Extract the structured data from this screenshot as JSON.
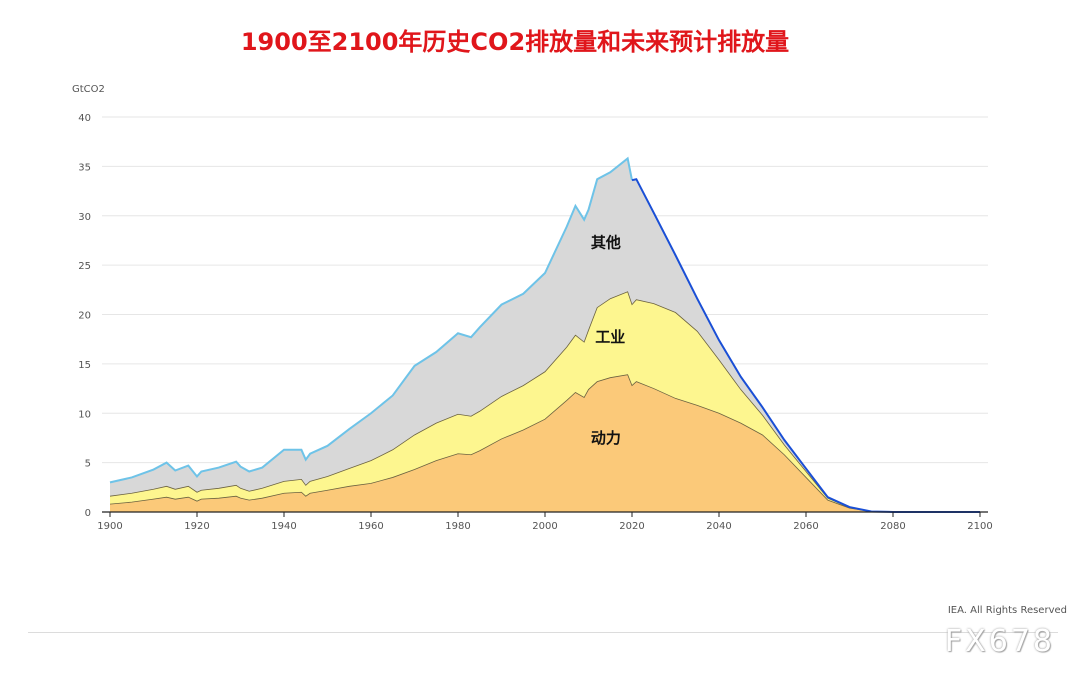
{
  "header": {
    "title": "1900至2100年历史CO2排放量和未来预计排放量"
  },
  "footer": {
    "copyright": "IEA. All Rights Reserved",
    "watermark": "FX678"
  },
  "chart_data": {
    "type": "area",
    "title": "1900至2100年历史CO2排放量和未来预计排放量",
    "ylabel": "GtCO2",
    "xlabel": "",
    "xlim": [
      1900,
      2100
    ],
    "ylim": [
      0,
      40
    ],
    "x_ticks": [
      1900,
      1920,
      1940,
      1960,
      1980,
      2000,
      2020,
      2040,
      2060,
      2080,
      2100
    ],
    "y_ticks": [
      0,
      5,
      10,
      15,
      20,
      25,
      30,
      35,
      40
    ],
    "grid": true,
    "stacked": true,
    "x": [
      1900,
      1905,
      1910,
      1913,
      1915,
      1918,
      1920,
      1921,
      1925,
      1929,
      1930,
      1932,
      1935,
      1940,
      1944,
      1945,
      1946,
      1950,
      1955,
      1960,
      1965,
      1970,
      1975,
      1980,
      1983,
      1985,
      1990,
      1995,
      2000,
      2005,
      2007,
      2009,
      2010,
      2012,
      2015,
      2019,
      2020,
      2021,
      2025,
      2030,
      2035,
      2040,
      2045,
      2050,
      2055,
      2060,
      2065,
      2070,
      2075,
      2080,
      2090,
      2100
    ],
    "series": [
      {
        "name": "动力",
        "color": "#fbc979",
        "values": [
          0.8,
          1.0,
          1.3,
          1.5,
          1.3,
          1.5,
          1.1,
          1.3,
          1.4,
          1.6,
          1.4,
          1.2,
          1.4,
          1.9,
          2.0,
          1.6,
          1.9,
          2.2,
          2.6,
          2.9,
          3.5,
          4.3,
          5.2,
          5.9,
          5.8,
          6.2,
          7.4,
          8.3,
          9.4,
          11.3,
          12.1,
          11.6,
          12.4,
          13.2,
          13.6,
          13.9,
          12.8,
          13.2,
          12.5,
          11.5,
          10.8,
          10.0,
          9.0,
          7.8,
          5.8,
          3.5,
          1.2,
          0.4,
          0.05,
          0,
          0,
          0
        ]
      },
      {
        "name": "工业",
        "color": "#fdf68f",
        "values": [
          0.8,
          0.9,
          1.0,
          1.1,
          1.0,
          1.1,
          0.9,
          0.9,
          1.0,
          1.1,
          1.0,
          0.9,
          1.0,
          1.2,
          1.3,
          1.1,
          1.2,
          1.4,
          1.8,
          2.3,
          2.8,
          3.5,
          3.8,
          4.0,
          3.9,
          4.0,
          4.3,
          4.5,
          4.8,
          5.4,
          5.8,
          5.6,
          6.0,
          7.5,
          8.0,
          8.4,
          8.2,
          8.3,
          8.6,
          8.7,
          7.5,
          5.4,
          3.4,
          2.0,
          1.0,
          0.6,
          0.2,
          0.05,
          0,
          0,
          0,
          0
        ]
      },
      {
        "name": "其他",
        "color": "#d8d8d8",
        "values": [
          1.4,
          1.6,
          2.0,
          2.4,
          1.9,
          2.1,
          1.6,
          1.9,
          2.1,
          2.4,
          2.2,
          2.0,
          2.1,
          3.2,
          3.0,
          2.6,
          2.8,
          3.1,
          4.0,
          4.8,
          5.5,
          7.0,
          7.2,
          8.2,
          8.0,
          8.5,
          9.3,
          9.3,
          10.0,
          12.2,
          13.1,
          12.4,
          12.2,
          13.0,
          12.8,
          13.5,
          12.6,
          12.2,
          9.2,
          5.8,
          3.3,
          2.0,
          1.3,
          0.8,
          0.5,
          0.3,
          0.1,
          0.05,
          0,
          0,
          0,
          0
        ]
      }
    ],
    "outline": {
      "name": "total",
      "historical_color": "#6ec3e8",
      "projection_color": "#1a4fd6",
      "projection_start": 2020
    },
    "labels": [
      "动力",
      "工业",
      "其他"
    ]
  }
}
